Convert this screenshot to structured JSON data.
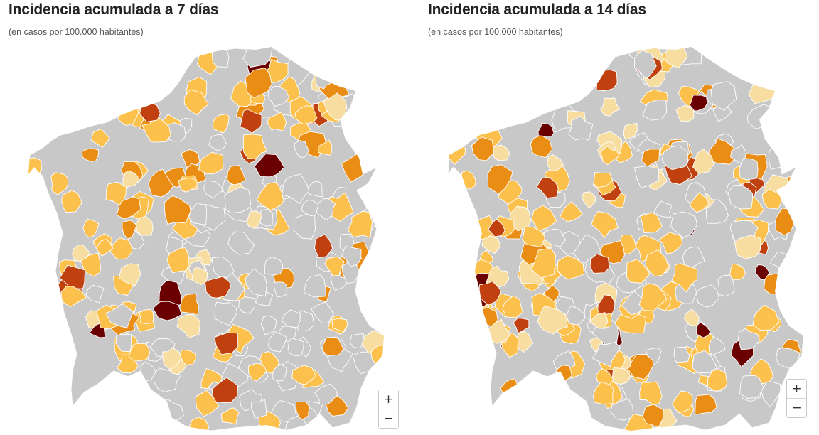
{
  "maps": [
    {
      "title": "Incidencia acumulada a 7 días",
      "subtitle": "(en casos por 100.000 habitantes)",
      "zoom_in_label": "+",
      "zoom_out_label": "−"
    },
    {
      "title": "Incidencia acumulada a 14 días",
      "subtitle": "(en casos por 100.000 habitantes)",
      "zoom_in_label": "+",
      "zoom_out_label": "−"
    }
  ],
  "palette": {
    "no_data": "#c8c8c8",
    "very_low": "#f7dea0",
    "low": "#fcc14c",
    "medium": "#ea8d14",
    "high": "#c0410f",
    "very_high": "#6b0000",
    "border": "#ffffff"
  }
}
